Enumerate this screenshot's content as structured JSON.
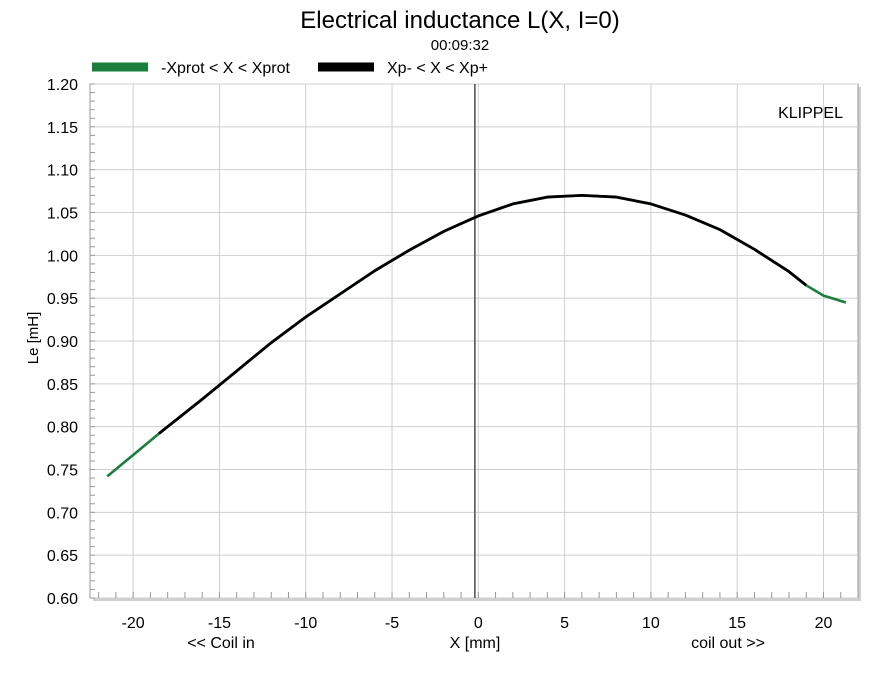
{
  "chart_data": {
    "type": "line",
    "title": "Electrical inductance L(X, I=0)",
    "subtitle": "00:09:32",
    "watermark": "KLIPPEL",
    "xlabel": "X [mm]",
    "xlabel_left": "<< Coil in",
    "xlabel_right": "coil out >>",
    "ylabel": "Le [mH]",
    "xlim": [
      -22.5,
      22
    ],
    "ylim": [
      0.6,
      1.2
    ],
    "x_ticks": [
      -20,
      -15,
      -10,
      -5,
      0,
      5,
      10,
      15,
      20
    ],
    "y_ticks": [
      0.6,
      0.65,
      0.7,
      0.75,
      0.8,
      0.85,
      0.9,
      0.95,
      1.0,
      1.05,
      1.1,
      1.15,
      1.2
    ],
    "y_tick_labels": [
      "0.60",
      "0.65",
      "0.70",
      "0.75",
      "0.80",
      "0.85",
      "0.90",
      "0.95",
      "1.00",
      "1.05",
      "1.10",
      "1.15",
      "1.20"
    ],
    "grid": true,
    "legend_position": "top",
    "vertical_marker_x": -0.2,
    "series": [
      {
        "name": "-Xprot < X < Xprot",
        "color": "#1a7f3c",
        "x": [
          -21.5,
          -20,
          -18.5,
          -16,
          -14,
          -12,
          -10,
          -8,
          -6,
          -4,
          -2,
          0,
          2,
          4,
          6,
          8,
          10,
          12,
          14,
          16,
          18,
          19,
          20,
          21.3
        ],
        "y": [
          0.742,
          0.767,
          0.792,
          0.832,
          0.865,
          0.898,
          0.928,
          0.955,
          0.982,
          1.006,
          1.028,
          1.046,
          1.06,
          1.068,
          1.07,
          1.068,
          1.06,
          1.047,
          1.03,
          1.007,
          0.981,
          0.965,
          0.953,
          0.945
        ]
      },
      {
        "name": "Xp- < X < Xp+",
        "color": "#000000",
        "x": [
          -18.5,
          -16,
          -14,
          -12,
          -10,
          -8,
          -6,
          -4,
          -2,
          0,
          2,
          4,
          6,
          8,
          10,
          12,
          14,
          16,
          18,
          19
        ],
        "y": [
          0.792,
          0.832,
          0.865,
          0.898,
          0.928,
          0.955,
          0.982,
          1.006,
          1.028,
          1.046,
          1.06,
          1.068,
          1.07,
          1.068,
          1.06,
          1.047,
          1.03,
          1.007,
          0.981,
          0.965
        ]
      }
    ]
  }
}
